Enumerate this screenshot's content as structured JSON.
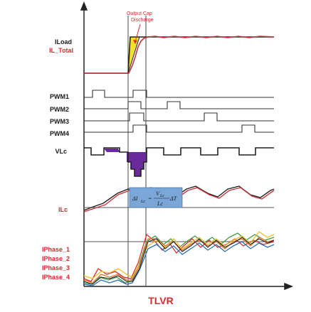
{
  "diagram": {
    "caption": "TLVR",
    "annotation": {
      "line1": "Output Cap",
      "line2": "Discharge"
    },
    "formula": {
      "lhs": "ΔI",
      "lhs_sub": "Lc",
      "equals": "=",
      "num": "V",
      "num_sub": "Lc",
      "den": "Lc",
      "tail": "ΔT"
    },
    "labels": {
      "iload": "ILoad",
      "il_total": "IL_Total",
      "pwm1": "PWM1",
      "pwm2": "PWM2",
      "pwm3": "PWM3",
      "pwm4": "PWM4",
      "vlc": "VLc",
      "ilc": "ILc",
      "iphase1": "IPhase_1",
      "iphase2": "IPhase_2",
      "iphase3": "IPhase_3",
      "iphase4": "IPhase_4"
    },
    "colors": {
      "black_label": "#1a1a1a",
      "red_label": "#e2262b",
      "trace": "#222222",
      "red_trace": "#c8343a",
      "fill_yellow": "#f4e12a",
      "fill_purple": "#6a2a9c",
      "formula_box": "#7aa6d8",
      "phase_colors": [
        "#d8302e",
        "#3a9a4a",
        "#e8c02a",
        "#2d6db3",
        "#e8742a"
      ]
    }
  }
}
